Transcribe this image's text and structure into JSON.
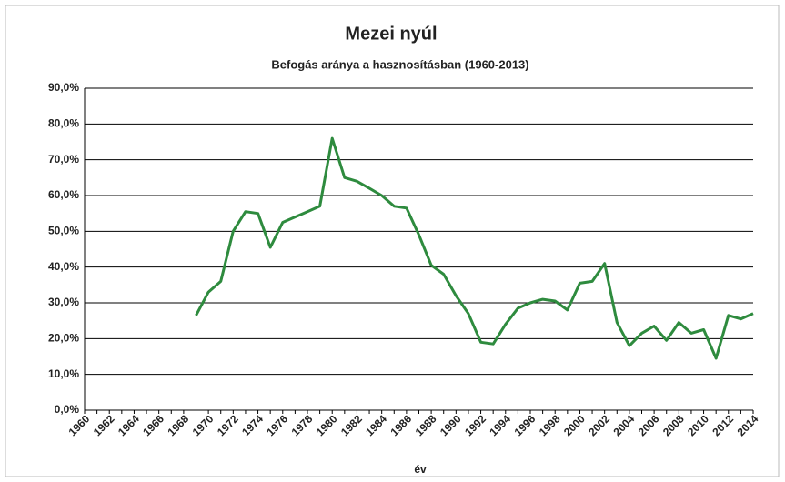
{
  "chart_data": {
    "type": "line",
    "title": "Mezei nyúl",
    "subtitle": "Befogás aránya a hasznosításban (1960-2013)",
    "x_label": "év",
    "categories": [
      "1960",
      null,
      "1962",
      null,
      "1964",
      null,
      "1966",
      null,
      "1968",
      null,
      "1970",
      null,
      "1972",
      null,
      "1974",
      null,
      "1976",
      null,
      "1978",
      null,
      "1980",
      null,
      "1982",
      null,
      "1984",
      null,
      "1986",
      null,
      "1988",
      null,
      "1990",
      null,
      "1992",
      null,
      "1994",
      null,
      "1996",
      null,
      "1998",
      null,
      "2000",
      null,
      "2002",
      null,
      "2004",
      null,
      "2006",
      null,
      "2008",
      null,
      "2010",
      null,
      "2012",
      null,
      "2014"
    ],
    "series": [
      {
        "color": "#2e8b3e",
        "values": [
          null,
          null,
          null,
          null,
          null,
          null,
          null,
          null,
          null,
          26.5,
          33,
          36,
          50,
          55.5,
          55,
          45.5,
          52.5,
          54,
          55.5,
          57,
          76,
          65,
          64,
          62,
          60,
          57,
          56.5,
          49,
          40.5,
          38,
          32,
          27,
          19,
          18.5,
          24,
          28.5,
          30,
          31,
          30.5,
          28,
          35.5,
          36,
          41,
          24.5,
          18,
          21.5,
          23.5,
          19.5,
          24.5,
          21.5,
          22.5,
          14.5,
          26.5,
          25.5,
          27
        ]
      }
    ],
    "ylim": [
      0,
      90
    ],
    "yticks": [
      {
        "value": 0,
        "label": "0,0%"
      },
      {
        "value": 10,
        "label": "10,0%"
      },
      {
        "value": 20,
        "label": "20,0%"
      },
      {
        "value": 30,
        "label": "30,0%"
      },
      {
        "value": 40,
        "label": "40,0%"
      },
      {
        "value": 50,
        "label": "50,0%"
      },
      {
        "value": 60,
        "label": "60,0%"
      },
      {
        "value": 70,
        "label": "70,0%"
      },
      {
        "value": 80,
        "label": "80,0%"
      },
      {
        "value": 90,
        "label": "90,0%"
      }
    ],
    "grid": true
  }
}
